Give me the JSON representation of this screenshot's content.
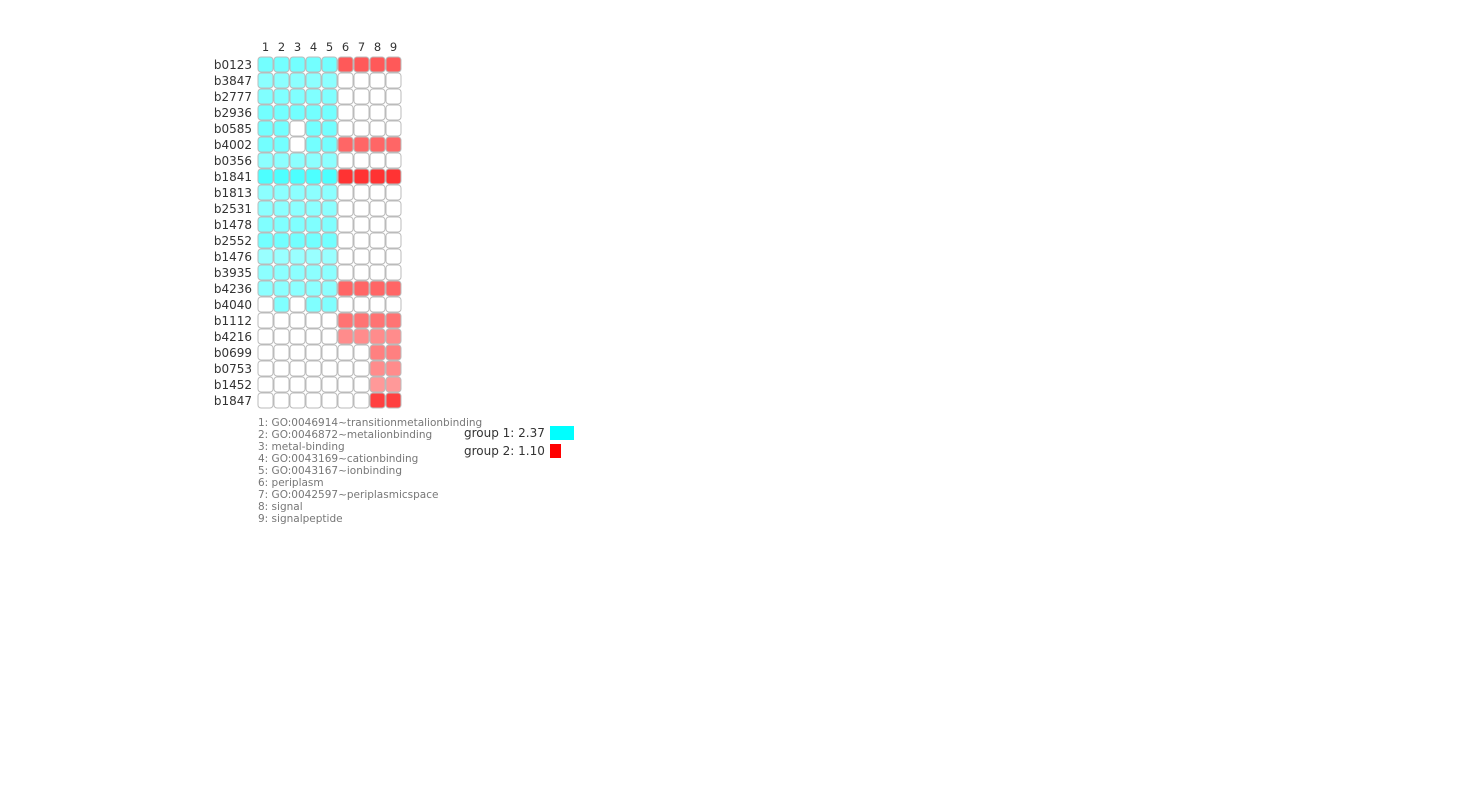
{
  "chart_data": {
    "type": "heatmap",
    "columns": [
      "1",
      "2",
      "3",
      "4",
      "5",
      "6",
      "7",
      "8",
      "9"
    ],
    "rows": [
      "b0123",
      "b3847",
      "b2777",
      "b2936",
      "b0585",
      "b4002",
      "b0356",
      "b1841",
      "b1813",
      "b2531",
      "b1478",
      "b2552",
      "b1476",
      "b3935",
      "b4236",
      "b4040",
      "b1112",
      "b4216",
      "b0699",
      "b0753",
      "b1452",
      "b1847"
    ],
    "cells": [
      [
        0.55,
        0.55,
        0.55,
        0.55,
        0.55,
        0.65,
        0.65,
        0.65,
        0.65
      ],
      [
        0.45,
        0.45,
        0.45,
        0.45,
        0.45,
        0,
        0,
        0,
        0
      ],
      [
        0.5,
        0.5,
        0.5,
        0.5,
        0.5,
        0,
        0,
        0,
        0
      ],
      [
        0.55,
        0.55,
        0.55,
        0.55,
        0.55,
        0,
        0,
        0,
        0
      ],
      [
        0.55,
        0.55,
        0,
        0.55,
        0.55,
        0,
        0,
        0,
        0
      ],
      [
        0.55,
        0.55,
        0,
        0.55,
        0.55,
        0.6,
        0.6,
        0.6,
        0.6
      ],
      [
        0.45,
        0.45,
        0.45,
        0.45,
        0.45,
        0,
        0,
        0,
        0
      ],
      [
        0.7,
        0.7,
        0.7,
        0.7,
        0.7,
        0.8,
        0.8,
        0.8,
        0.8
      ],
      [
        0.45,
        0.45,
        0.45,
        0.45,
        0.45,
        0,
        0,
        0,
        0
      ],
      [
        0.45,
        0.45,
        0.45,
        0.45,
        0.45,
        0,
        0,
        0,
        0
      ],
      [
        0.5,
        0.5,
        0.5,
        0.5,
        0.5,
        0,
        0,
        0,
        0
      ],
      [
        0.55,
        0.55,
        0.55,
        0.55,
        0.55,
        0,
        0,
        0,
        0
      ],
      [
        0.4,
        0.4,
        0.4,
        0.4,
        0.4,
        0,
        0,
        0,
        0
      ],
      [
        0.45,
        0.45,
        0.45,
        0.45,
        0.45,
        0,
        0,
        0,
        0
      ],
      [
        0.45,
        0.45,
        0.45,
        0.45,
        0.45,
        0.6,
        0.6,
        0.6,
        0.6
      ],
      [
        0,
        0.5,
        0,
        0.5,
        0.5,
        0,
        0,
        0,
        0
      ],
      [
        0,
        0,
        0,
        0,
        0,
        0.55,
        0.55,
        0.55,
        0.55
      ],
      [
        0,
        0,
        0,
        0,
        0,
        0.45,
        0.45,
        0.45,
        0.45
      ],
      [
        0,
        0,
        0,
        0,
        0,
        0,
        0,
        0.5,
        0.5
      ],
      [
        0,
        0,
        0,
        0,
        0,
        0,
        0,
        0.45,
        0.45
      ],
      [
        0,
        0,
        0,
        0,
        0,
        0,
        0,
        0.4,
        0.4
      ],
      [
        0,
        0,
        0,
        0,
        0,
        0,
        0,
        0.75,
        0.75
      ]
    ],
    "column_groups": [
      1,
      1,
      1,
      1,
      1,
      2,
      2,
      2,
      2
    ],
    "terms": [
      "1: GO:0046914~transitionmetalionbinding",
      "2: GO:0046872~metalionbinding",
      "3: metal-binding",
      "4: GO:0043169~cationbinding",
      "5: GO:0043167~ionbinding",
      "6: periplasm",
      "7: GO:0042597~periplasmicspace",
      "8: signal",
      "9: signalpeptide"
    ],
    "legend": [
      {
        "label": "group 1: 2.37",
        "score": 2.37,
        "color": "#00ffff"
      },
      {
        "label": "group 2: 1.10",
        "score": 1.1,
        "color": "#ff0000"
      }
    ],
    "grid": true
  },
  "colors": {
    "group1": "#00ffff",
    "group2": "#ff0000",
    "cell_border": "#bbbbbb",
    "empty_cell": "#ffffff"
  }
}
